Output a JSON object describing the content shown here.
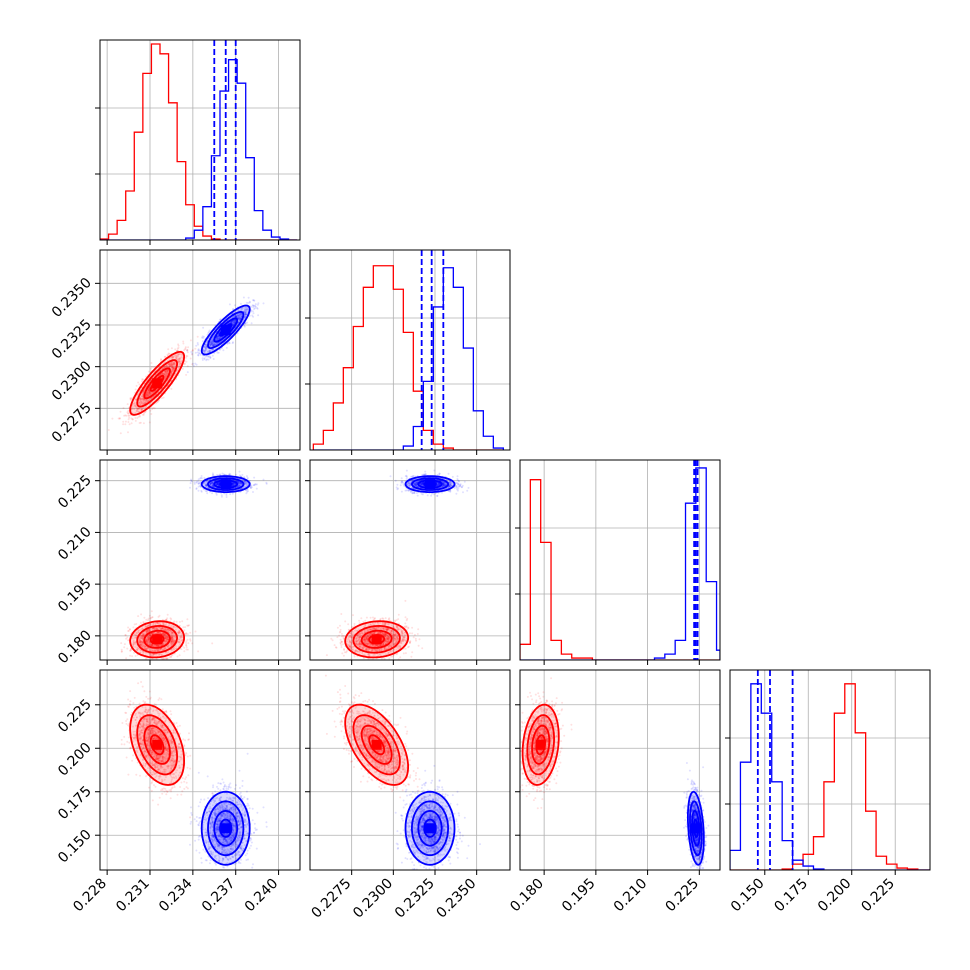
{
  "colors": {
    "red": "#ff0000",
    "blue": "#0000ff",
    "axis": "#000000",
    "grid": "#b0b0b0"
  },
  "chart_data": {
    "type": "corner-plot",
    "grid": true,
    "parameters": [
      {
        "range": [
          0.2275,
          0.2415
        ],
        "ticks": [
          "0.228",
          "0.231",
          "0.234",
          "0.237",
          "0.240"
        ]
      },
      {
        "range": [
          0.225,
          0.237
        ],
        "ticks": [
          "0.2275",
          "0.2300",
          "0.2325",
          "0.2350"
        ]
      },
      {
        "range": [
          0.173,
          0.231
        ],
        "ticks": [
          "0.180",
          "0.195",
          "0.210",
          "0.225"
        ]
      },
      {
        "range": [
          0.13,
          0.245
        ],
        "ticks": [
          "0.150",
          "0.175",
          "0.200",
          "0.225"
        ]
      }
    ],
    "series": [
      {
        "color": "red",
        "mean": [
          0.2315,
          0.229,
          0.179,
          0.202
        ],
        "sd": [
          0.0009,
          0.0009,
          0.0025,
          0.011
        ],
        "rho": [
          [
            1,
            0.85,
            0.1,
            -0.4
          ],
          [
            0.85,
            1,
            0.1,
            -0.55
          ],
          [
            0.1,
            0.1,
            1,
            0.2
          ],
          [
            -0.4,
            -0.55,
            0.2,
            1
          ]
        ]
      },
      {
        "color": "blue",
        "mean": [
          0.2363,
          0.2322,
          0.224,
          0.154
        ],
        "sd": [
          0.0008,
          0.0007,
          0.0011,
          0.01
        ],
        "rho": [
          [
            1,
            0.85,
            0,
            0
          ],
          [
            0.85,
            1,
            0,
            0
          ],
          [
            0,
            0,
            1,
            -0.3
          ],
          [
            0,
            0,
            -0.3,
            1
          ]
        ]
      }
    ],
    "quantile_lines": [
      [
        0.2355,
        0.2363,
        0.237
      ],
      [
        0.2317,
        0.2323,
        0.233
      ],
      [
        0.2235,
        0.224,
        0.2245
      ],
      [
        0.146,
        0.153,
        0.166
      ]
    ],
    "histograms": [
      {
        "bin_edges": [
          0.2275,
          0.2281,
          0.2287,
          0.2293,
          0.2299,
          0.2305,
          0.2311,
          0.2317,
          0.2323,
          0.2329,
          0.2335,
          0.2341,
          0.2347,
          0.2353,
          0.2359,
          0.2365,
          0.2371,
          0.2377,
          0.2383,
          0.2389,
          0.2395,
          0.2401,
          0.2407,
          0.2413
        ],
        "red": [
          0.005,
          0.03,
          0.1,
          0.25,
          0.55,
          0.85,
          1.0,
          0.95,
          0.7,
          0.4,
          0.18,
          0.07,
          0.02,
          0.005,
          0,
          0,
          0,
          0,
          0,
          0,
          0,
          0,
          0
        ],
        "blue": [
          0,
          0,
          0,
          0,
          0,
          0,
          0,
          0,
          0,
          0,
          0.01,
          0.05,
          0.17,
          0.43,
          0.76,
          0.92,
          0.8,
          0.42,
          0.15,
          0.05,
          0.015,
          0.005,
          0
        ]
      },
      {
        "bin_edges": [
          0.2252,
          0.2258,
          0.2264,
          0.227,
          0.2276,
          0.2282,
          0.2288,
          0.2294,
          0.23,
          0.2306,
          0.2312,
          0.2318,
          0.2324,
          0.233,
          0.2336,
          0.2342,
          0.2348,
          0.2354,
          0.236,
          0.2366
        ],
        "red": [
          0.03,
          0.1,
          0.24,
          0.42,
          0.63,
          0.83,
          0.94,
          0.94,
          0.82,
          0.6,
          0.3,
          0.1,
          0.03,
          0.01,
          0,
          0,
          0,
          0,
          0
        ],
        "blue": [
          0,
          0,
          0,
          0,
          0,
          0,
          0,
          0,
          0,
          0.02,
          0.12,
          0.35,
          0.73,
          0.93,
          0.83,
          0.52,
          0.2,
          0.07,
          0.01
        ]
      },
      {
        "bin_edges": [
          0.173,
          0.176,
          0.179,
          0.182,
          0.185,
          0.188,
          0.191,
          0.194,
          0.197,
          0.2,
          0.203,
          0.206,
          0.209,
          0.212,
          0.215,
          0.218,
          0.221,
          0.224,
          0.227,
          0.23,
          0.231
        ],
        "red": [
          0.08,
          0.92,
          0.6,
          0.1,
          0.03,
          0.01,
          0.01,
          0,
          0,
          0,
          0,
          0,
          0,
          0,
          0,
          0,
          0,
          0,
          0,
          0
        ],
        "blue": [
          0,
          0,
          0,
          0,
          0,
          0,
          0,
          0,
          0,
          0,
          0,
          0,
          0,
          0.01,
          0.03,
          0.1,
          0.8,
          0.98,
          0.4,
          0.05
        ]
      },
      {
        "bin_edges": [
          0.13,
          0.136,
          0.142,
          0.148,
          0.154,
          0.16,
          0.166,
          0.172,
          0.178,
          0.184,
          0.19,
          0.196,
          0.202,
          0.208,
          0.214,
          0.22,
          0.226,
          0.232,
          0.238,
          0.245
        ],
        "red": [
          0,
          0,
          0,
          0,
          0,
          0.005,
          0.03,
          0.08,
          0.17,
          0.45,
          0.8,
          0.95,
          0.7,
          0.3,
          0.07,
          0.03,
          0.01,
          0.005,
          0
        ],
        "blue": [
          0.1,
          0.55,
          0.95,
          0.8,
          0.45,
          0.15,
          0.05,
          0.02,
          0.005,
          0,
          0,
          0,
          0,
          0,
          0,
          0,
          0,
          0,
          0
        ]
      }
    ]
  }
}
